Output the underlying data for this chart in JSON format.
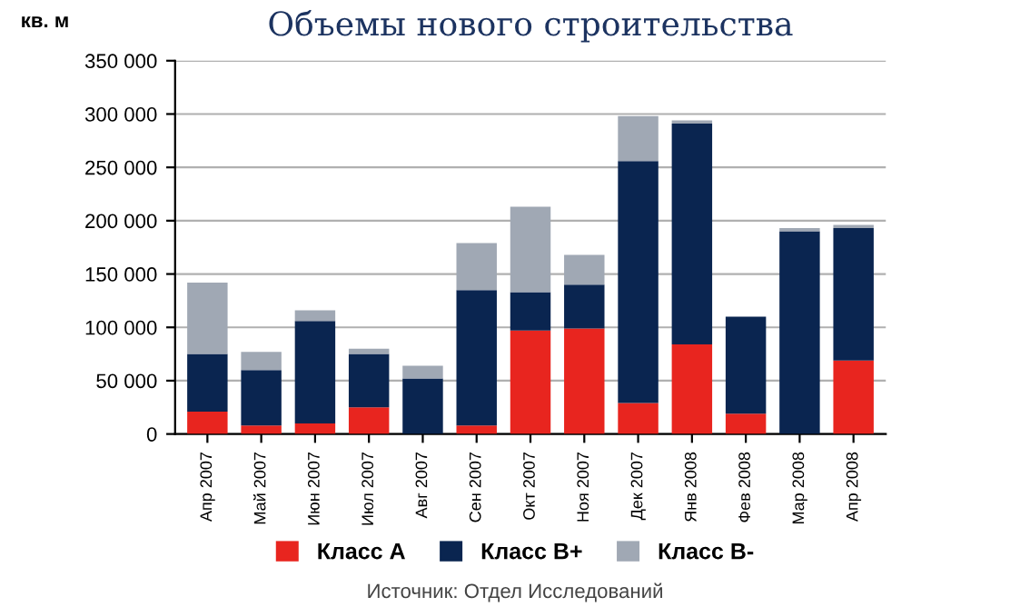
{
  "chart_data": {
    "type": "bar",
    "stacked": true,
    "title": "Объемы нового строительства",
    "ylabel": "кв. м",
    "categories": [
      "Апр 2007",
      "Май 2007",
      "Июн 2007",
      "Июл 2007",
      "Авг 2007",
      "Сен 2007",
      "Окт 2007",
      "Ноя 2007",
      "Дек 2007",
      "Янв 2008",
      "Фев 2008",
      "Мар 2008",
      "Апр 2008"
    ],
    "series": [
      {
        "name": "Класс А",
        "color": "#e8251f",
        "values": [
          21000,
          8000,
          10000,
          25000,
          0,
          8000,
          97000,
          99000,
          29000,
          84000,
          19000,
          0,
          69000
        ]
      },
      {
        "name": "Класс В+",
        "color": "#0a2550",
        "values": [
          54000,
          52000,
          96000,
          50000,
          52000,
          127000,
          36000,
          41000,
          227000,
          207000,
          91000,
          190000,
          124000
        ]
      },
      {
        "name": "Класс В-",
        "color": "#a0a8b4",
        "values": [
          67000,
          17000,
          10000,
          5000,
          12000,
          44000,
          80000,
          28000,
          42000,
          3000,
          0,
          3000,
          3000
        ]
      }
    ],
    "ylim": [
      0,
      350000
    ],
    "yticks": [
      0,
      {
        "value": 50000,
        "label": "50 000"
      },
      {
        "value": 100000,
        "label": "100 000"
      },
      {
        "value": 150000,
        "label": "150 000"
      },
      {
        "value": 200000,
        "label": "200 000"
      },
      {
        "value": 250000,
        "label": "250 000"
      },
      {
        "value": 300000,
        "label": "300 000"
      },
      {
        "value": 350000,
        "label": "350 000"
      }
    ],
    "grid": "y",
    "legend": "bottom",
    "annotations": [
      "Источник: Отдел Исследований"
    ]
  }
}
